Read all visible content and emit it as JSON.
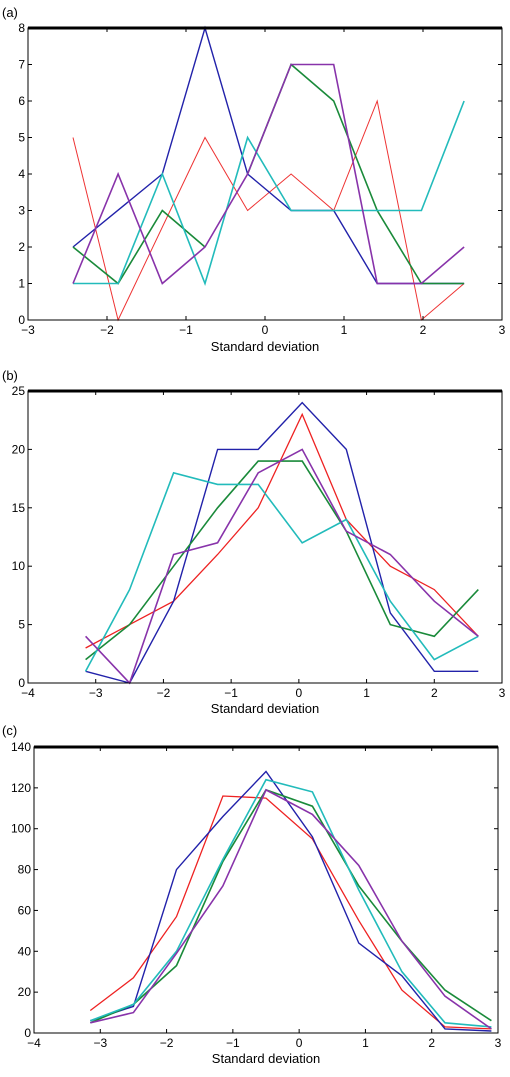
{
  "chart_data": [
    {
      "type": "line",
      "panel_label": "(a)",
      "xlabel": "Standard deviation",
      "ylabel": "",
      "xlim": [
        -3,
        3
      ],
      "ylim": [
        0,
        8
      ],
      "xticks": [
        -3,
        -2,
        -1,
        0,
        1,
        2,
        3
      ],
      "yticks": [
        0,
        1,
        2,
        3,
        4,
        5,
        6,
        7,
        8
      ],
      "grid": false,
      "series": [
        {
          "color": "#ee3333",
          "stroke": 1.0,
          "x": [
            -2.43,
            -1.86,
            -0.76,
            -0.22,
            0.33,
            0.87,
            1.42,
            1.98,
            2.52
          ],
          "y": [
            5,
            0,
            5,
            3,
            4,
            3,
            6,
            0,
            1
          ]
        },
        {
          "color": "#2222aa",
          "stroke": 1.4,
          "x": [
            -2.43,
            -1.3,
            -0.76,
            -0.22,
            0.33,
            0.87,
            1.42,
            1.98,
            2.52
          ],
          "y": [
            2,
            4,
            8,
            4,
            3,
            3,
            1,
            1,
            1
          ]
        },
        {
          "color": "#1a8a3a",
          "stroke": 1.6,
          "x": [
            -2.43,
            -1.86,
            -1.3,
            -0.76
          ],
          "y": [
            2,
            1,
            3,
            2
          ]
        },
        {
          "color": "#1a8a3a",
          "stroke": 1.6,
          "x": [
            -0.22,
            0.33,
            0.87,
            1.42,
            1.98,
            2.52
          ],
          "y": [
            4,
            7,
            6,
            3,
            1,
            1
          ]
        },
        {
          "color": "#22bbbb",
          "stroke": 1.6,
          "x": [
            -2.43,
            -1.86,
            -1.3,
            -0.76,
            -0.22,
            0.33,
            0.87,
            1.42,
            1.98,
            2.52
          ],
          "y": [
            1,
            1,
            4,
            1,
            5,
            3,
            3,
            3,
            3,
            6
          ]
        },
        {
          "color": "#8833aa",
          "stroke": 1.6,
          "x": [
            -2.43,
            -1.86,
            -1.3,
            -0.76,
            -0.22,
            0.33,
            0.87,
            1.42,
            1.98,
            2.52
          ],
          "y": [
            1,
            4,
            1,
            2,
            4,
            7,
            7,
            1,
            1,
            2
          ]
        }
      ]
    },
    {
      "type": "line",
      "panel_label": "(b)",
      "xlabel": "Standard deviation",
      "ylabel": "",
      "xlim": [
        -4,
        3
      ],
      "ylim": [
        0,
        25
      ],
      "xticks": [
        -4,
        -3,
        -2,
        -1,
        0,
        1,
        2,
        3
      ],
      "yticks": [
        0,
        5,
        10,
        15,
        20,
        25
      ],
      "grid": false,
      "series": [
        {
          "color": "#ee2222",
          "stroke": 1.3,
          "x": [
            -3.15,
            -2.5,
            -1.85,
            -1.2,
            -0.6,
            0.05,
            0.7,
            1.35,
            2.0,
            2.65
          ],
          "y": [
            3,
            5,
            7,
            11,
            15,
            23,
            14,
            10,
            8,
            4
          ]
        },
        {
          "color": "#2222aa",
          "stroke": 1.4,
          "x": [
            -3.15,
            -2.5,
            -1.85,
            -1.2,
            -0.6,
            0.05,
            0.7,
            1.35,
            2.0,
            2.65
          ],
          "y": [
            1,
            0,
            7,
            20,
            20,
            24,
            20,
            6,
            1,
            1
          ]
        },
        {
          "color": "#1a8a3a",
          "stroke": 1.6,
          "x": [
            -3.15,
            -2.5,
            -1.85,
            -1.2,
            -0.6,
            0.05,
            0.7,
            1.35,
            2.0,
            2.65
          ],
          "y": [
            2,
            5,
            10,
            15,
            19,
            19,
            13,
            5,
            4,
            8
          ]
        },
        {
          "color": "#22bbbb",
          "stroke": 1.6,
          "x": [
            -3.15,
            -2.5,
            -1.85,
            -1.2,
            -0.6,
            0.05,
            0.7,
            1.35,
            2.0,
            2.65
          ],
          "y": [
            1,
            8,
            18,
            17,
            17,
            12,
            14,
            7,
            2,
            4
          ]
        },
        {
          "color": "#8833aa",
          "stroke": 1.6,
          "x": [
            -3.15,
            -2.5,
            -1.85,
            -1.2,
            -0.6,
            0.05,
            0.7,
            1.35,
            2.0,
            2.65
          ],
          "y": [
            4,
            0,
            11,
            12,
            18,
            20,
            13,
            11,
            7,
            4
          ]
        }
      ]
    },
    {
      "type": "line",
      "panel_label": "(c)",
      "xlabel": "Standard deviation",
      "ylabel": "",
      "xlim": [
        -4,
        3
      ],
      "ylim": [
        0,
        140
      ],
      "xticks": [
        -4,
        -3,
        -2,
        -1,
        0,
        1,
        2,
        3
      ],
      "yticks": [
        0,
        20,
        40,
        60,
        80,
        100,
        120,
        140
      ],
      "grid": false,
      "series": [
        {
          "color": "#ee2222",
          "stroke": 1.3,
          "x": [
            -3.15,
            -2.5,
            -1.85,
            -1.15,
            -0.5,
            0.2,
            0.9,
            1.55,
            2.2,
            2.9
          ],
          "y": [
            11,
            27,
            57,
            116,
            115,
            95,
            55,
            21,
            3,
            2
          ]
        },
        {
          "color": "#2222aa",
          "stroke": 1.4,
          "x": [
            -3.15,
            -2.5,
            -1.85,
            -1.15,
            -0.5,
            0.2,
            0.9,
            1.55,
            2.2,
            2.9
          ],
          "y": [
            6,
            13,
            80,
            106,
            128,
            96,
            44,
            28,
            2,
            1
          ]
        },
        {
          "color": "#1a8a3a",
          "stroke": 1.6,
          "x": [
            -3.15,
            -2.5,
            -1.85,
            -1.15,
            -0.5,
            0.2,
            0.9,
            1.55,
            2.2,
            2.9
          ],
          "y": [
            5,
            14,
            33,
            84,
            119,
            111,
            72,
            45,
            21,
            6
          ]
        },
        {
          "color": "#22bbbb",
          "stroke": 1.6,
          "x": [
            -3.15,
            -2.5,
            -1.85,
            -1.15,
            -0.5,
            0.2,
            0.9,
            1.55,
            2.2,
            2.9
          ],
          "y": [
            6,
            14,
            40,
            85,
            124,
            118,
            70,
            30,
            5,
            3
          ]
        },
        {
          "color": "#8833aa",
          "stroke": 1.6,
          "x": [
            -3.15,
            -2.5,
            -1.85,
            -1.15,
            -0.5,
            0.2,
            0.9,
            1.55,
            2.2,
            2.9
          ],
          "y": [
            5,
            10,
            39,
            72,
            119,
            107,
            82,
            45,
            18,
            2
          ]
        }
      ]
    }
  ]
}
